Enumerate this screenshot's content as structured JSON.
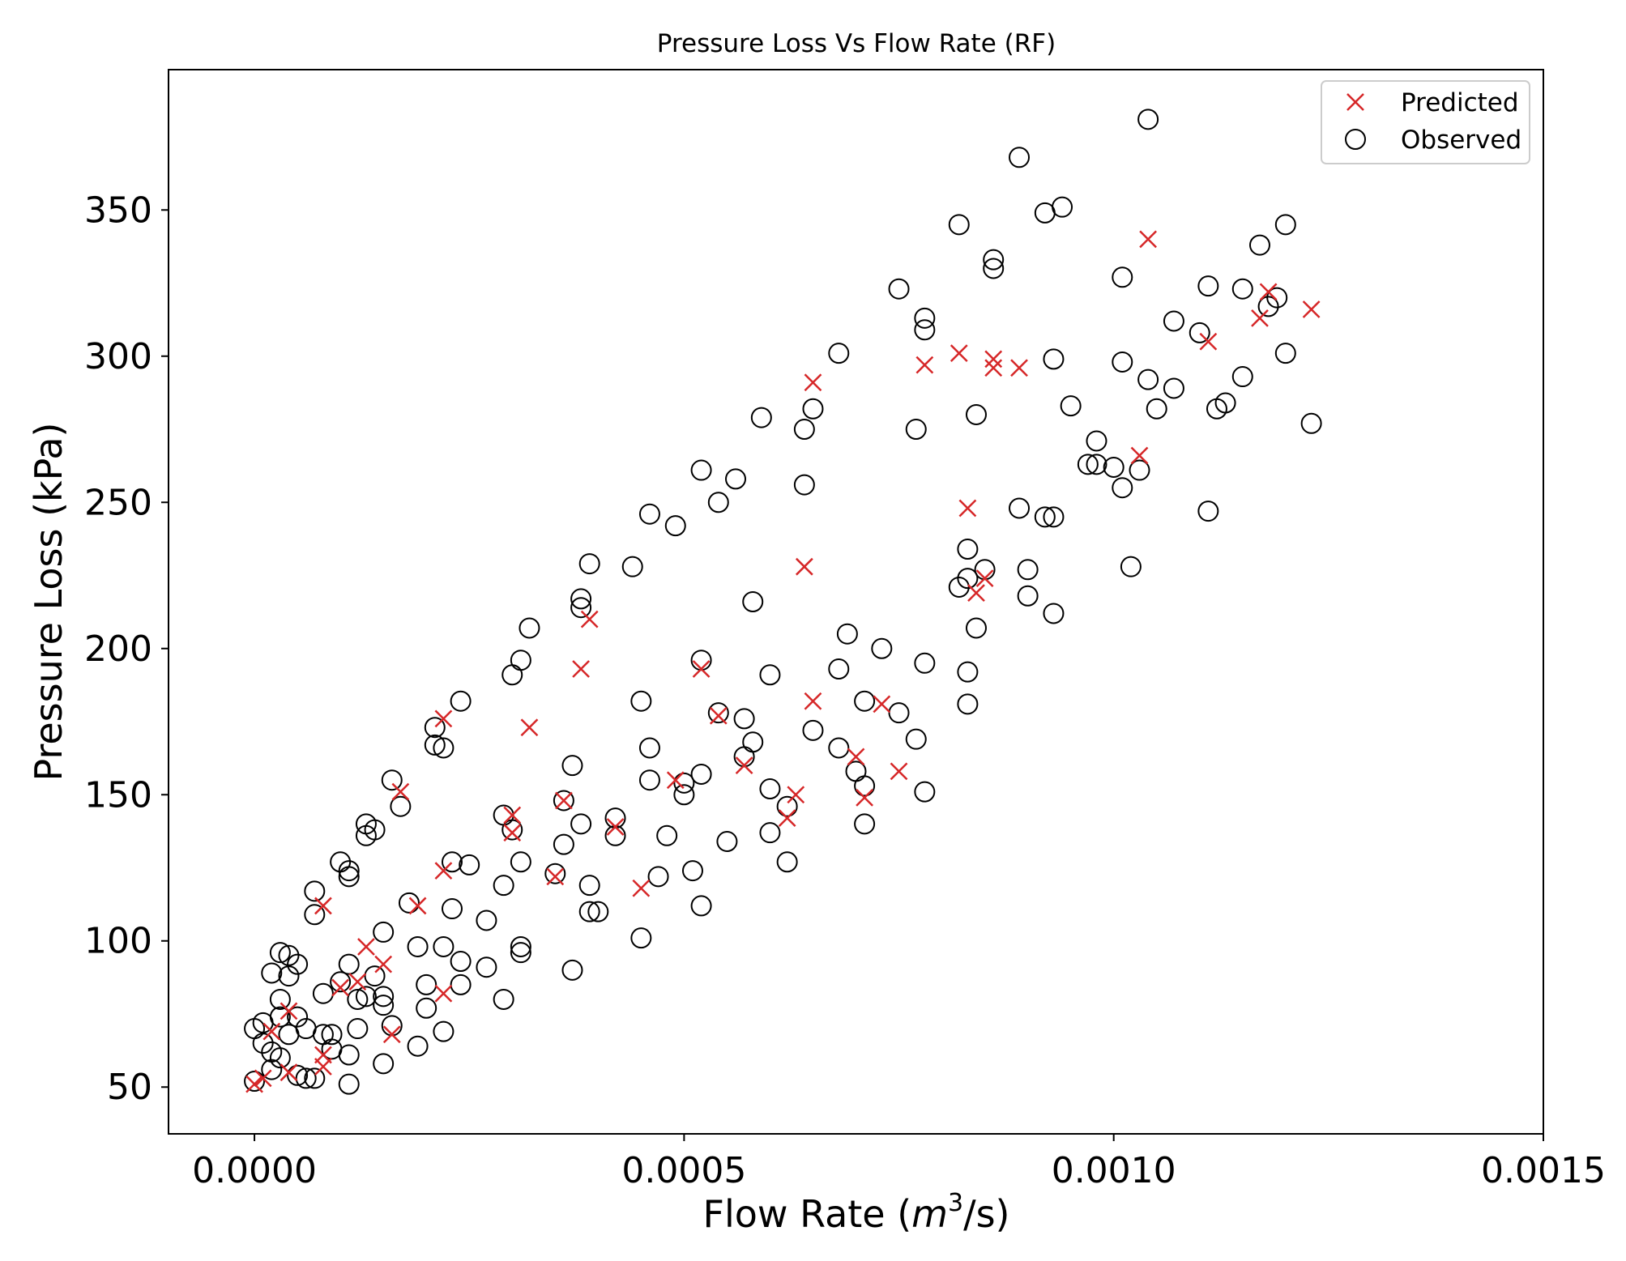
{
  "chart_data": {
    "type": "scatter",
    "title": "Pressure Loss Vs Flow Rate (RF)",
    "xlabel_prefix": "Flow Rate (",
    "xlabel_var": "m",
    "xlabel_exp": "3",
    "xlabel_suffix": "/s)",
    "ylabel": "Pressure Loss (kPa)",
    "xlim": [
      -0.0001,
      0.0015
    ],
    "ylim": [
      34,
      398
    ],
    "xticks": [
      0.0,
      0.0005,
      0.001,
      0.0015
    ],
    "xtick_labels": [
      "0.0000",
      "0.0005",
      "0.0010",
      "0.0015"
    ],
    "yticks": [
      50,
      100,
      150,
      200,
      250,
      300,
      350
    ],
    "ytick_labels": [
      "50",
      "100",
      "150",
      "200",
      "250",
      "300",
      "350"
    ],
    "legend_position": "upper right",
    "colors": {
      "predicted": "#d62728",
      "observed": "#000000"
    },
    "series": [
      {
        "name": "Predicted",
        "marker": "x",
        "points": [
          [
            0.0,
            51
          ],
          [
            1e-05,
            53
          ],
          [
            2e-05,
            69
          ],
          [
            4e-05,
            76
          ],
          [
            4e-05,
            55
          ],
          [
            8e-05,
            61
          ],
          [
            8e-05,
            57
          ],
          [
            8e-05,
            112
          ],
          [
            0.0001,
            84
          ],
          [
            0.00012,
            86
          ],
          [
            0.00013,
            98
          ],
          [
            0.00015,
            92
          ],
          [
            0.00016,
            68
          ],
          [
            0.00017,
            151
          ],
          [
            0.00019,
            112
          ],
          [
            0.00022,
            176
          ],
          [
            0.00022,
            124
          ],
          [
            0.00022,
            82
          ],
          [
            0.0003,
            143
          ],
          [
            0.0003,
            137
          ],
          [
            0.00032,
            173
          ],
          [
            0.00035,
            122
          ],
          [
            0.00036,
            148
          ],
          [
            0.00038,
            193
          ],
          [
            0.00039,
            210
          ],
          [
            0.00042,
            139
          ],
          [
            0.00045,
            118
          ],
          [
            0.00052,
            193
          ],
          [
            0.00054,
            177
          ],
          [
            0.00049,
            155
          ],
          [
            0.00057,
            160
          ],
          [
            0.00063,
            150
          ],
          [
            0.00062,
            142
          ],
          [
            0.00064,
            228
          ],
          [
            0.00065,
            182
          ],
          [
            0.00065,
            291
          ],
          [
            0.0007,
            163
          ],
          [
            0.00071,
            149
          ],
          [
            0.00073,
            181
          ],
          [
            0.00075,
            158
          ],
          [
            0.00078,
            297
          ],
          [
            0.00082,
            301
          ],
          [
            0.00083,
            248
          ],
          [
            0.00084,
            219
          ],
          [
            0.00085,
            224
          ],
          [
            0.00086,
            299
          ],
          [
            0.00086,
            296
          ],
          [
            0.00089,
            296
          ],
          [
            0.00103,
            266
          ],
          [
            0.00104,
            340
          ],
          [
            0.00111,
            305
          ],
          [
            0.00117,
            313
          ],
          [
            0.00118,
            322
          ],
          [
            0.00123,
            316
          ]
        ]
      },
      {
        "name": "Observed",
        "marker": "o",
        "points": [
          [
            0.0,
            52
          ],
          [
            0.0,
            70
          ],
          [
            1e-05,
            72
          ],
          [
            1e-05,
            65
          ],
          [
            2e-05,
            62
          ],
          [
            2e-05,
            89
          ],
          [
            2e-05,
            56
          ],
          [
            3e-05,
            74
          ],
          [
            3e-05,
            80
          ],
          [
            3e-05,
            96
          ],
          [
            3e-05,
            60
          ],
          [
            4e-05,
            68
          ],
          [
            4e-05,
            88
          ],
          [
            4e-05,
            95
          ],
          [
            5e-05,
            54
          ],
          [
            5e-05,
            92
          ],
          [
            5e-05,
            74
          ],
          [
            6e-05,
            70
          ],
          [
            6e-05,
            53
          ],
          [
            7e-05,
            117
          ],
          [
            7e-05,
            109
          ],
          [
            7e-05,
            53
          ],
          [
            8e-05,
            68
          ],
          [
            8e-05,
            82
          ],
          [
            9e-05,
            68
          ],
          [
            9e-05,
            63
          ],
          [
            0.0001,
            86
          ],
          [
            0.0001,
            127
          ],
          [
            0.00011,
            122
          ],
          [
            0.00011,
            124
          ],
          [
            0.00011,
            92
          ],
          [
            0.00011,
            61
          ],
          [
            0.00011,
            51
          ],
          [
            0.00012,
            70
          ],
          [
            0.00012,
            80
          ],
          [
            0.00013,
            81
          ],
          [
            0.00013,
            140
          ],
          [
            0.00013,
            136
          ],
          [
            0.00014,
            138
          ],
          [
            0.00014,
            88
          ],
          [
            0.00015,
            78
          ],
          [
            0.00015,
            81
          ],
          [
            0.00015,
            103
          ],
          [
            0.00015,
            58
          ],
          [
            0.00016,
            71
          ],
          [
            0.00016,
            155
          ],
          [
            0.00017,
            146
          ],
          [
            0.00018,
            113
          ],
          [
            0.00019,
            98
          ],
          [
            0.00019,
            64
          ],
          [
            0.0002,
            85
          ],
          [
            0.0002,
            77
          ],
          [
            0.00021,
            173
          ],
          [
            0.00021,
            167
          ],
          [
            0.00022,
            166
          ],
          [
            0.00022,
            98
          ],
          [
            0.00022,
            69
          ],
          [
            0.00023,
            127
          ],
          [
            0.00023,
            111
          ],
          [
            0.00024,
            93
          ],
          [
            0.00024,
            85
          ],
          [
            0.00024,
            182
          ],
          [
            0.00025,
            126
          ],
          [
            0.00027,
            107
          ],
          [
            0.00027,
            91
          ],
          [
            0.00029,
            119
          ],
          [
            0.00029,
            143
          ],
          [
            0.00029,
            80
          ],
          [
            0.0003,
            191
          ],
          [
            0.0003,
            138
          ],
          [
            0.00031,
            196
          ],
          [
            0.00031,
            127
          ],
          [
            0.00031,
            96
          ],
          [
            0.00031,
            98
          ],
          [
            0.00032,
            207
          ],
          [
            0.00035,
            123
          ],
          [
            0.00036,
            133
          ],
          [
            0.00036,
            148
          ],
          [
            0.00037,
            160
          ],
          [
            0.00037,
            90
          ],
          [
            0.00038,
            214
          ],
          [
            0.00038,
            140
          ],
          [
            0.00038,
            217
          ],
          [
            0.00039,
            119
          ],
          [
            0.00039,
            110
          ],
          [
            0.00039,
            229
          ],
          [
            0.0004,
            110
          ],
          [
            0.00042,
            142
          ],
          [
            0.00042,
            136
          ],
          [
            0.00044,
            228
          ],
          [
            0.00045,
            182
          ],
          [
            0.00045,
            101
          ],
          [
            0.00046,
            155
          ],
          [
            0.00046,
            166
          ],
          [
            0.00046,
            246
          ],
          [
            0.00047,
            122
          ],
          [
            0.00048,
            136
          ],
          [
            0.00049,
            242
          ],
          [
            0.0005,
            150
          ],
          [
            0.0005,
            154
          ],
          [
            0.00051,
            124
          ],
          [
            0.00052,
            196
          ],
          [
            0.00052,
            157
          ],
          [
            0.00052,
            261
          ],
          [
            0.00052,
            112
          ],
          [
            0.00054,
            178
          ],
          [
            0.00054,
            250
          ],
          [
            0.00055,
            134
          ],
          [
            0.00056,
            258
          ],
          [
            0.00057,
            163
          ],
          [
            0.00057,
            176
          ],
          [
            0.00058,
            216
          ],
          [
            0.00058,
            168
          ],
          [
            0.00059,
            279
          ],
          [
            0.0006,
            152
          ],
          [
            0.0006,
            137
          ],
          [
            0.0006,
            191
          ],
          [
            0.00062,
            146
          ],
          [
            0.00062,
            127
          ],
          [
            0.00064,
            256
          ],
          [
            0.00064,
            275
          ],
          [
            0.00065,
            172
          ],
          [
            0.00065,
            282
          ],
          [
            0.00068,
            301
          ],
          [
            0.00068,
            193
          ],
          [
            0.00068,
            166
          ],
          [
            0.00069,
            205
          ],
          [
            0.0007,
            158
          ],
          [
            0.00071,
            140
          ],
          [
            0.00071,
            153
          ],
          [
            0.00071,
            182
          ],
          [
            0.00073,
            200
          ],
          [
            0.00075,
            323
          ],
          [
            0.00075,
            178
          ],
          [
            0.00077,
            169
          ],
          [
            0.00077,
            275
          ],
          [
            0.00078,
            151
          ],
          [
            0.00078,
            195
          ],
          [
            0.00078,
            309
          ],
          [
            0.00078,
            313
          ],
          [
            0.00082,
            345
          ],
          [
            0.00082,
            221
          ],
          [
            0.00083,
            224
          ],
          [
            0.00083,
            234
          ],
          [
            0.00083,
            192
          ],
          [
            0.00083,
            181
          ],
          [
            0.00084,
            280
          ],
          [
            0.00084,
            207
          ],
          [
            0.00085,
            227
          ],
          [
            0.00086,
            333
          ],
          [
            0.00086,
            330
          ],
          [
            0.00089,
            368
          ],
          [
            0.00089,
            248
          ],
          [
            0.0009,
            218
          ],
          [
            0.0009,
            227
          ],
          [
            0.00092,
            349
          ],
          [
            0.00092,
            245
          ],
          [
            0.00093,
            299
          ],
          [
            0.00093,
            245
          ],
          [
            0.00093,
            212
          ],
          [
            0.00094,
            351
          ],
          [
            0.00095,
            283
          ],
          [
            0.00097,
            263
          ],
          [
            0.00098,
            271
          ],
          [
            0.00098,
            263
          ],
          [
            0.001,
            262
          ],
          [
            0.00101,
            255
          ],
          [
            0.00101,
            327
          ],
          [
            0.00101,
            298
          ],
          [
            0.00102,
            228
          ],
          [
            0.00103,
            261
          ],
          [
            0.00104,
            381
          ],
          [
            0.00104,
            292
          ],
          [
            0.00105,
            282
          ],
          [
            0.00107,
            312
          ],
          [
            0.00107,
            289
          ],
          [
            0.0011,
            308
          ],
          [
            0.00111,
            247
          ],
          [
            0.00111,
            324
          ],
          [
            0.00112,
            282
          ],
          [
            0.00113,
            284
          ],
          [
            0.00115,
            323
          ],
          [
            0.00115,
            293
          ],
          [
            0.00117,
            338
          ],
          [
            0.00118,
            317
          ],
          [
            0.00119,
            320
          ],
          [
            0.0012,
            301
          ],
          [
            0.0012,
            345
          ],
          [
            0.00123,
            277
          ]
        ]
      }
    ]
  }
}
